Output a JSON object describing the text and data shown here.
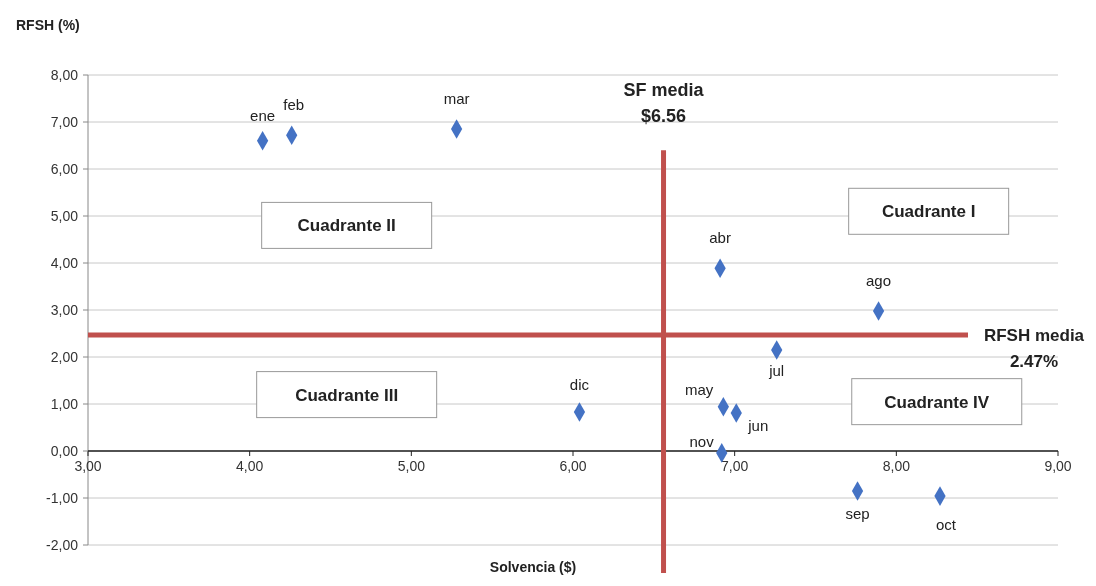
{
  "chart_data": {
    "type": "scatter",
    "xlabel": "Solvencia ($)",
    "ylabel": "RFSH (%)",
    "x": [
      4.08,
      4.26,
      5.28,
      6.91,
      6.93,
      7.01,
      7.26,
      7.89,
      7.76,
      8.27,
      6.92,
      6.04
    ],
    "series": [
      {
        "color": "#4472c4",
        "values": [
          6.6,
          6.72,
          6.85,
          3.89,
          0.94,
          0.81,
          2.15,
          2.98,
          -0.85,
          -0.96,
          -0.04,
          0.83
        ]
      }
    ],
    "marker": "diamond",
    "grid": "y",
    "xlim": [
      3,
      9
    ],
    "xticks": [
      {
        "value": 3,
        "label": "3,00"
      },
      {
        "value": 4,
        "label": "4,00"
      },
      {
        "value": 5,
        "label": "5,00"
      },
      {
        "value": 6,
        "label": "6,00"
      },
      {
        "value": 7,
        "label": "7,00"
      },
      {
        "value": 8,
        "label": "8,00"
      },
      {
        "value": 9,
        "label": "9,00"
      }
    ],
    "ylim": [
      -2,
      8
    ],
    "yticks": [
      {
        "value": -2,
        "label": "-2,00"
      },
      {
        "value": -1,
        "label": "-1,00"
      },
      {
        "value": 0,
        "label": "0,00"
      },
      {
        "value": 1,
        "label": "1,00"
      },
      {
        "value": 2,
        "label": "2,00"
      },
      {
        "value": 3,
        "label": "3,00"
      },
      {
        "value": 4,
        "label": "4,00"
      },
      {
        "value": 5,
        "label": "5,00"
      },
      {
        "value": 6,
        "label": "6,00"
      },
      {
        "value": 7,
        "label": "7,00"
      },
      {
        "value": 8,
        "label": "8,00"
      }
    ],
    "ref_lines": [
      {
        "axis": "x",
        "value": 6.56,
        "label": "SF media\n$6.56",
        "color": "#c0504d"
      },
      {
        "axis": "y",
        "value": 2.47,
        "label": "RFSH media\n2.47%",
        "color": "#c0504d"
      }
    ],
    "annotations": [
      {
        "text": "ene",
        "x": 4.08,
        "y": 6.6
      },
      {
        "text": "feb",
        "x": 4.26,
        "y": 6.72
      },
      {
        "text": "mar",
        "x": 5.28,
        "y": 6.85
      },
      {
        "text": "abr",
        "x": 6.91,
        "y": 3.89
      },
      {
        "text": "may",
        "x": 6.93,
        "y": 0.94
      },
      {
        "text": "jun",
        "x": 7.01,
        "y": 0.81
      },
      {
        "text": "jul",
        "x": 7.26,
        "y": 2.15
      },
      {
        "text": "ago",
        "x": 7.89,
        "y": 2.98
      },
      {
        "text": "sep",
        "x": 7.76,
        "y": -0.85
      },
      {
        "text": "oct",
        "x": 8.27,
        "y": -0.96
      },
      {
        "text": "nov",
        "x": 6.92,
        "y": -0.04
      },
      {
        "text": "dic",
        "x": 6.04,
        "y": 0.83
      },
      "Cuadrante II",
      "Cuadrante I",
      "Cuadrante III",
      "Cuadrante IV"
    ]
  }
}
